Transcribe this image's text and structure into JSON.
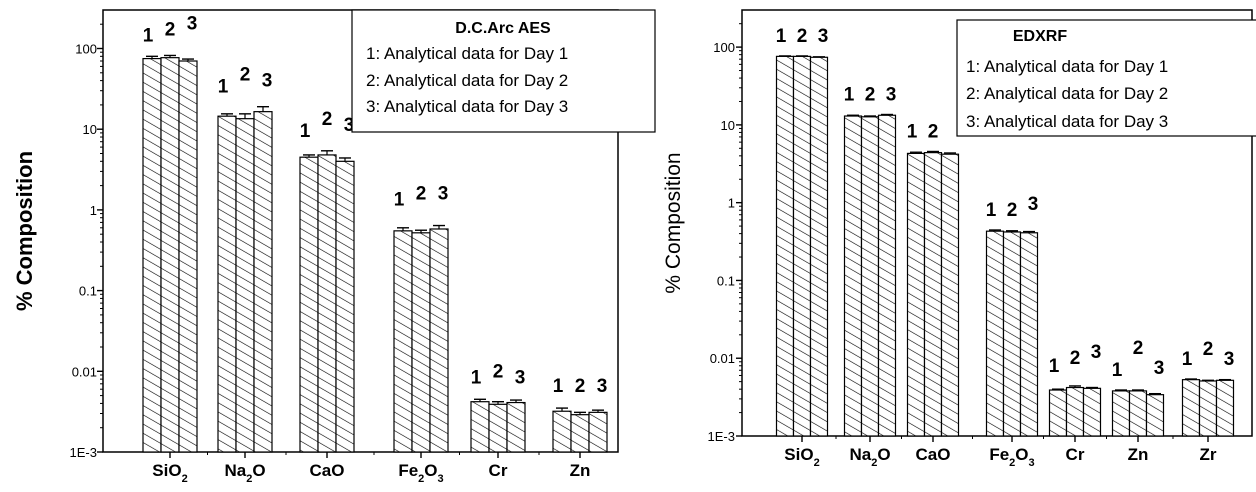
{
  "chart_data": [
    {
      "type": "bar",
      "title": "D.C.Arc AES",
      "ylabel": "% Composition",
      "yscale": "log",
      "ylim": [
        0.001,
        300
      ],
      "ytick_labels": [
        "1E-3",
        "0.01",
        "0.1",
        "1",
        "10",
        "100"
      ],
      "categories": [
        {
          "base": "SiO",
          "sub": "2",
          "after": "",
          "sub2": ""
        },
        {
          "base": "Na",
          "sub": "2",
          "after": "O",
          "sub2": ""
        },
        {
          "base": "CaO",
          "sub": "",
          "after": "",
          "sub2": ""
        },
        {
          "base": "Fe",
          "sub": "2",
          "after": "O",
          "sub2": "3"
        },
        {
          "base": "Cr",
          "sub": "",
          "after": "",
          "sub2": ""
        },
        {
          "base": "Zn",
          "sub": "",
          "after": "",
          "sub2": ""
        }
      ],
      "series": [
        {
          "name": "1",
          "values": [
            75,
            14.5,
            4.5,
            0.55,
            0.0042,
            0.0032
          ],
          "errors": [
            5,
            1,
            0.3,
            0.05,
            0.0003,
            0.0003
          ]
        },
        {
          "name": "2",
          "values": [
            77,
            13.5,
            4.8,
            0.52,
            0.0039,
            0.0029
          ],
          "errors": [
            5,
            2,
            0.6,
            0.04,
            0.0003,
            0.0002
          ]
        },
        {
          "name": "3",
          "values": [
            70,
            16.5,
            4.0,
            0.58,
            0.0041,
            0.0031
          ],
          "errors": [
            4,
            2.5,
            0.4,
            0.06,
            0.0003,
            0.0002
          ]
        }
      ],
      "bar_labels": [
        [
          "1",
          "2",
          "3"
        ],
        [
          "1",
          "2",
          "3"
        ],
        [
          "1",
          "2",
          "3"
        ],
        [
          "1",
          "2",
          "3"
        ],
        [
          "1",
          "2",
          "3"
        ],
        [
          "1",
          "2",
          "3"
        ]
      ],
      "legend": {
        "title": "D.C.Arc AES",
        "entries": [
          "1: Analytical data for Day 1",
          "2: Analytical data for Day 2",
          "3: Analytical data for Day 3"
        ],
        "position": "top-right"
      },
      "pattern": "diagonal-hatch"
    },
    {
      "type": "bar",
      "title": "EDXRF",
      "ylabel": "% Composition",
      "yscale": "log",
      "ylim": [
        0.001,
        300
      ],
      "ytick_labels": [
        "1E-3",
        "0.01",
        "0.1",
        "1",
        "10",
        "100"
      ],
      "categories": [
        {
          "base": "SiO",
          "sub": "2",
          "after": "",
          "sub2": ""
        },
        {
          "base": "Na",
          "sub": "2",
          "after": "O",
          "sub2": ""
        },
        {
          "base": "CaO",
          "sub": "",
          "after": "",
          "sub2": ""
        },
        {
          "base": "Fe",
          "sub": "2",
          "after": "O",
          "sub2": "3"
        },
        {
          "base": "Cr",
          "sub": "",
          "after": "",
          "sub2": ""
        },
        {
          "base": "Zn",
          "sub": "",
          "after": "",
          "sub2": ""
        },
        {
          "base": "Zr",
          "sub": "",
          "after": "",
          "sub2": ""
        }
      ],
      "series": [
        {
          "name": "1",
          "values": [
            76,
            13.0,
            4.3,
            0.43,
            0.0039,
            0.0038,
            0.0053
          ],
          "errors": [
            1,
            0.3,
            0.15,
            0.015,
            0.0001,
            0.0001,
            0.0001
          ]
        },
        {
          "name": "2",
          "values": [
            76,
            12.7,
            4.4,
            0.42,
            0.0042,
            0.0038,
            0.0051
          ],
          "errors": [
            1,
            0.3,
            0.15,
            0.015,
            0.0002,
            0.0001,
            0.0001
          ]
        },
        {
          "name": "3",
          "values": [
            74,
            13.3,
            4.2,
            0.41,
            0.0041,
            0.0034,
            0.0052
          ],
          "errors": [
            1,
            0.3,
            0.15,
            0.015,
            0.0001,
            0.0001,
            0.0001
          ]
        }
      ],
      "bar_labels": [
        [
          "1",
          "2",
          "3"
        ],
        [
          "1",
          "2",
          "3"
        ],
        [
          "1",
          "2",
          ""
        ],
        [
          "1",
          "2",
          "3"
        ],
        [
          "1",
          "2",
          "3"
        ],
        [
          "1",
          "2",
          "3"
        ],
        [
          "1",
          "2",
          "3"
        ]
      ],
      "legend": {
        "title": "EDXRF",
        "entries": [
          "1: Analytical data for Day 1",
          "2: Analytical data for Day 2",
          "3: Analytical data for Day 3"
        ],
        "position": "top-right"
      },
      "pattern": "diagonal-hatch"
    }
  ]
}
